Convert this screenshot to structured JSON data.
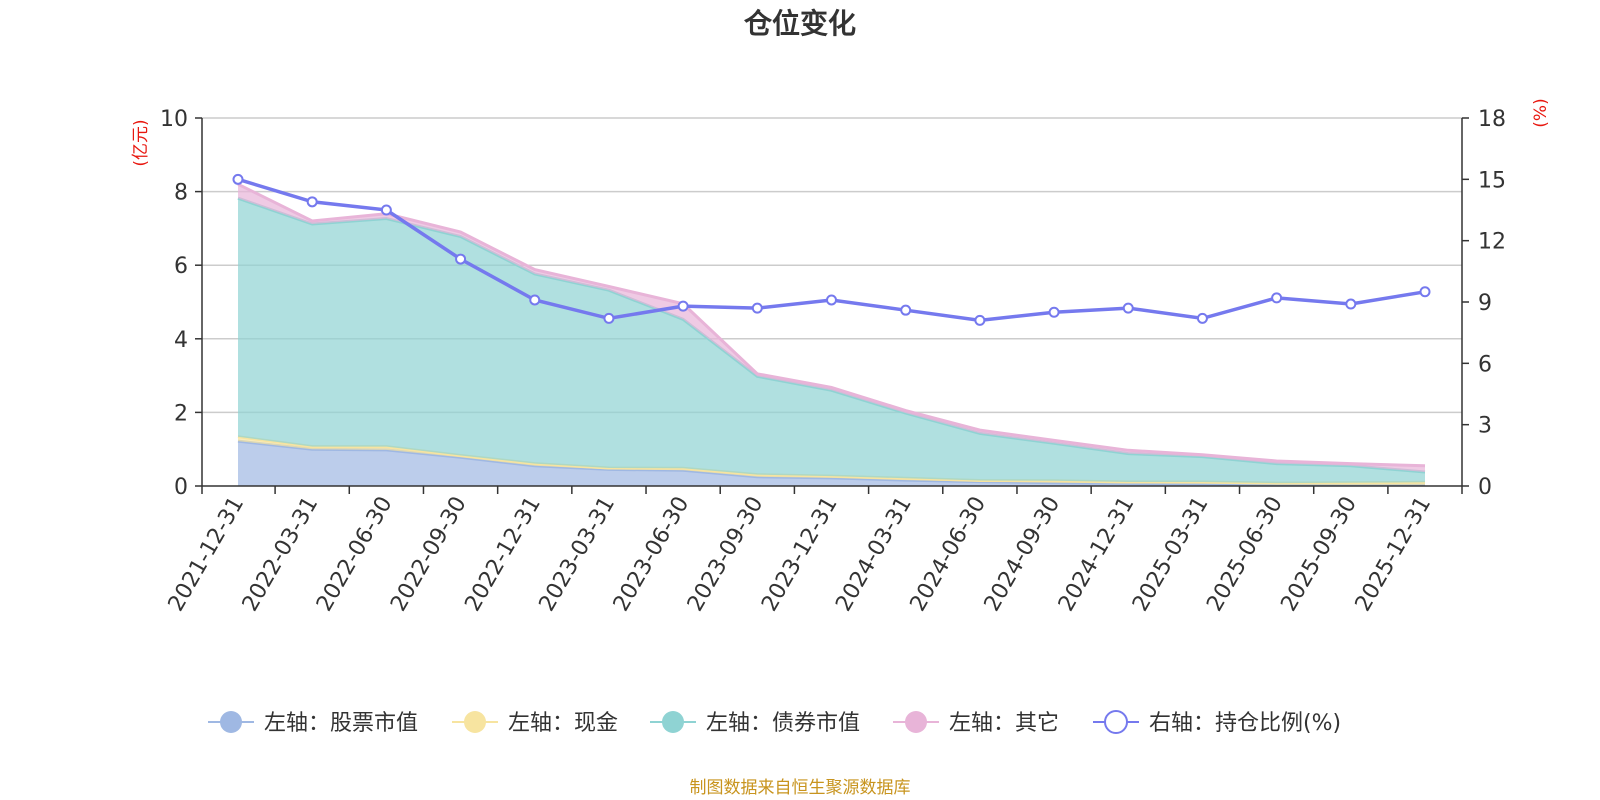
{
  "chart_data": {
    "type": "area",
    "title": "仓位变化",
    "left_axis": {
      "unit": "(亿元)",
      "ylim": [
        0,
        10
      ],
      "ticks": [
        "0",
        "2",
        "4",
        "6",
        "8",
        "10"
      ]
    },
    "right_axis": {
      "unit": "(%)",
      "ylim": [
        0,
        18
      ],
      "ticks": [
        "0",
        "3",
        "6",
        "9",
        "12",
        "15",
        "18"
      ]
    },
    "categories": [
      "2021-12-31",
      "2022-03-31",
      "2022-06-30",
      "2022-09-30",
      "2022-12-31",
      "2023-03-31",
      "2023-06-30",
      "2023-09-30",
      "2023-12-31",
      "2024-03-31",
      "2024-06-30",
      "2024-09-30",
      "2024-12-31",
      "2025-03-31",
      "2025-06-30",
      "2025-09-30",
      "2025-12-31"
    ],
    "series": [
      {
        "name": "左轴：股票市值",
        "axis": "left",
        "kind": "stacked-area",
        "color": "#9fb8e3",
        "values": [
          1.22,
          1.0,
          0.98,
          0.78,
          0.55,
          0.45,
          0.43,
          0.25,
          0.22,
          0.16,
          0.12,
          0.09,
          0.07,
          0.06,
          0.04,
          0.03,
          0.03
        ]
      },
      {
        "name": "左轴：现金",
        "axis": "left",
        "kind": "stacked-area",
        "color": "#f7e4a0",
        "values": [
          0.12,
          0.07,
          0.09,
          0.05,
          0.06,
          0.04,
          0.05,
          0.06,
          0.05,
          0.05,
          0.03,
          0.05,
          0.04,
          0.05,
          0.04,
          0.06,
          0.07
        ]
      },
      {
        "name": "左轴：债券市值",
        "axis": "left",
        "kind": "stacked-area",
        "color": "#8fd3d3",
        "values": [
          6.48,
          6.05,
          6.2,
          5.95,
          5.15,
          4.83,
          4.05,
          2.67,
          2.33,
          1.77,
          1.28,
          1.02,
          0.77,
          0.69,
          0.53,
          0.46,
          0.28
        ]
      },
      {
        "name": "左轴：其它",
        "axis": "left",
        "kind": "stacked-area",
        "color": "#e8b4d8",
        "values": [
          0.38,
          0.08,
          0.13,
          0.12,
          0.12,
          0.1,
          0.42,
          0.07,
          0.08,
          0.07,
          0.09,
          0.08,
          0.09,
          0.05,
          0.07,
          0.06,
          0.17
        ]
      },
      {
        "name": "右轴：持仓比例(%)",
        "axis": "right",
        "kind": "line",
        "color": "#7579ee",
        "values": [
          15.0,
          13.9,
          13.5,
          11.1,
          9.1,
          8.2,
          8.8,
          8.7,
          9.1,
          8.6,
          8.1,
          8.5,
          8.7,
          8.2,
          9.2,
          8.9,
          9.5
        ]
      }
    ]
  },
  "footer": {
    "source": "制图数据来自恒生聚源数据库",
    "color": "#c8941e"
  },
  "colors": {
    "unit_label": "#e8170f",
    "axis": "#333333",
    "grid": "#cccccc"
  }
}
